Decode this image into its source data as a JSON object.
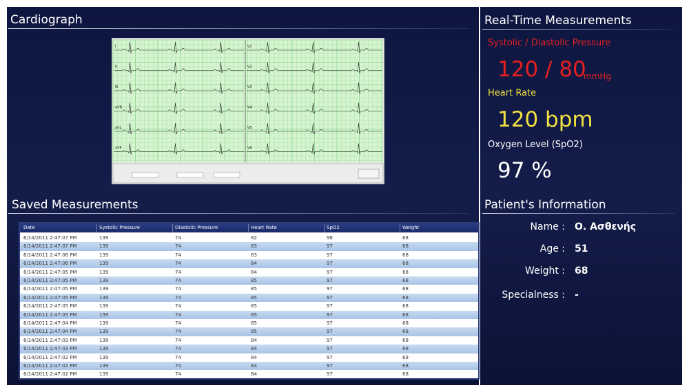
{
  "left": {
    "cardiograph_title": "Cardiograph",
    "ecg": {
      "leads_left": [
        "I",
        "II",
        "III",
        "aVR",
        "aVL",
        "aVF"
      ],
      "leads_right": [
        "V1",
        "V2",
        "V3",
        "V4",
        "V5",
        "V6"
      ]
    },
    "saved_title": "Saved Measurements",
    "table": {
      "headers": [
        "Date",
        "Systolic Pressure",
        "Diastolic Pressure",
        "Heart Rate",
        "SpO2",
        "Weight"
      ],
      "rows": [
        [
          "6/14/2011 2:47:07 PM",
          "139",
          "74",
          "82",
          "98",
          "68"
        ],
        [
          "6/14/2011 2:47:07 PM",
          "139",
          "74",
          "83",
          "97",
          "68"
        ],
        [
          "6/14/2011 2:47:06 PM",
          "139",
          "74",
          "83",
          "97",
          "68"
        ],
        [
          "6/14/2011 2:47:06 PM",
          "139",
          "74",
          "84",
          "97",
          "68"
        ],
        [
          "6/14/2011 2:47:05 PM",
          "139",
          "74",
          "84",
          "97",
          "68"
        ],
        [
          "6/14/2011 2:47:05 PM",
          "139",
          "74",
          "85",
          "97",
          "68"
        ],
        [
          "6/14/2011 2:47:05 PM",
          "139",
          "74",
          "85",
          "97",
          "68"
        ],
        [
          "6/14/2011 2:47:05 PM",
          "139",
          "74",
          "85",
          "97",
          "68"
        ],
        [
          "6/14/2011 2:47:05 PM",
          "139",
          "74",
          "85",
          "97",
          "68"
        ],
        [
          "6/14/2011 2:47:05 PM",
          "139",
          "74",
          "85",
          "97",
          "68"
        ],
        [
          "6/14/2011 2:47:04 PM",
          "139",
          "74",
          "85",
          "97",
          "68"
        ],
        [
          "6/14/2011 2:47:04 PM",
          "139",
          "74",
          "85",
          "97",
          "68"
        ],
        [
          "6/14/2011 2:47:03 PM",
          "139",
          "74",
          "84",
          "97",
          "68"
        ],
        [
          "6/14/2011 2:47:03 PM",
          "139",
          "74",
          "84",
          "97",
          "68"
        ],
        [
          "6/14/2011 2:47:02 PM",
          "139",
          "74",
          "84",
          "97",
          "68"
        ],
        [
          "6/14/2011 2:47:02 PM",
          "139",
          "74",
          "84",
          "97",
          "68"
        ],
        [
          "6/14/2011 2:47:02 PM",
          "139",
          "74",
          "84",
          "97",
          "68"
        ]
      ]
    }
  },
  "right": {
    "realtime_title": "Real-Time Measurements",
    "pressure_label": "Systolic / Diastolic Pressure",
    "pressure_value": "120 / 80",
    "pressure_unit": "mmHg",
    "heart_label": "Heart Rate",
    "heart_value": "120 bpm",
    "oxygen_label": "Oxygen Level (SpO2)",
    "oxygen_value": "97 %",
    "patient_title": "Patient's Information",
    "patient": [
      {
        "label": "Name :",
        "value": "Ο. Ασθενής"
      },
      {
        "label": "Age :",
        "value": "51"
      },
      {
        "label": "Weight :",
        "value": "68"
      },
      {
        "label": "Specialness :",
        "value": "-"
      }
    ]
  }
}
